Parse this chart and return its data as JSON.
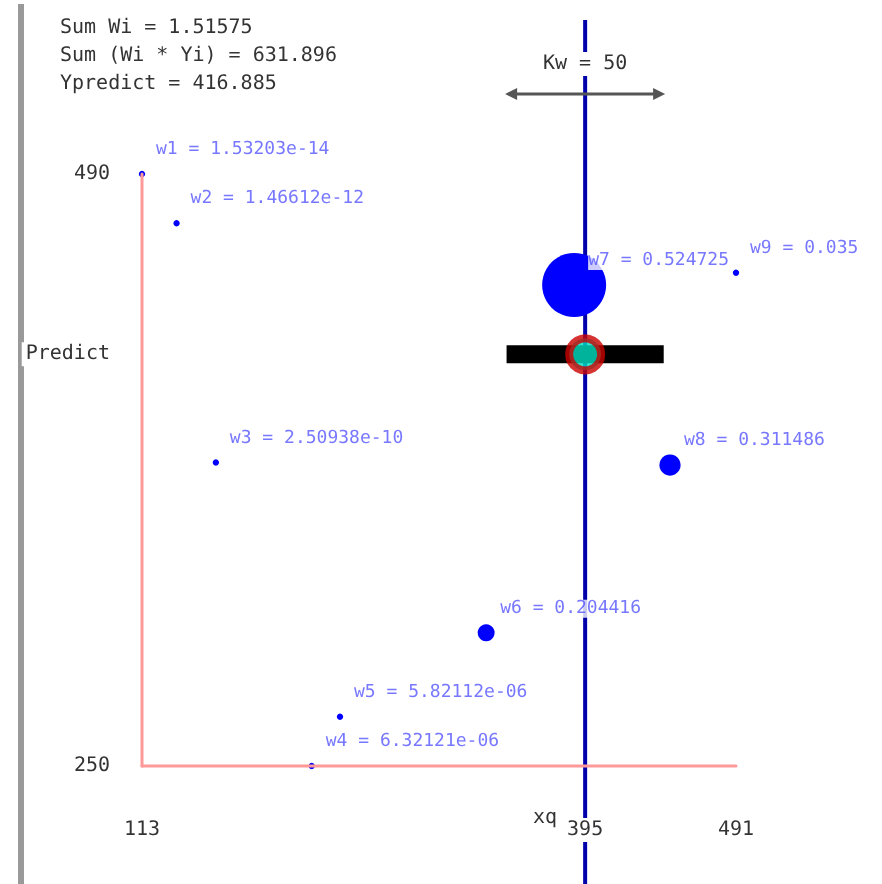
{
  "chart_data": {
    "type": "bubble",
    "xlim": [
      113,
      491
    ],
    "ylim": [
      250,
      490
    ],
    "xticks": [
      113,
      395,
      491
    ],
    "yticks": [
      250,
      {
        "value": 416.885,
        "label": "Predict"
      },
      490
    ],
    "grid": false,
    "series": [
      {
        "color": "#0000ff",
        "x": [
          113,
          135,
          160,
          221,
          239,
          332,
          388,
          449,
          491
        ],
        "values": [
          490,
          470,
          373,
          250,
          270,
          304,
          445,
          372,
          450
        ],
        "sizes": [
          0.01,
          0.01,
          0.01,
          0.01,
          0.01,
          0.07,
          1,
          0.11,
          0.01
        ]
      },
      {
        "type": "scatter",
        "color": "#00e0c0",
        "x": [
          395
        ],
        "values": [
          416.885
        ],
        "xerrors": [
          50
        ]
      }
    ],
    "ref_lines": [
      {
        "axis": "x",
        "value": 395,
        "label": "xq",
        "color": "#0000aa"
      }
    ],
    "annotations": [
      "Sum Wi = 1.51575",
      "Sum (Wi * Yi) = 631.896",
      "Ypredict = 416.885",
      "Kw = 50",
      {
        "text": "w1 = 1.53203e-14",
        "x": 113,
        "y": 490
      },
      {
        "text": "w2 = 1.46612e-12",
        "x": 135,
        "y": 470
      },
      {
        "text": "w3 = 2.50938e-10",
        "x": 160,
        "y": 373
      },
      {
        "text": "w4 = 6.32121e-06",
        "x": 221,
        "y": 250
      },
      {
        "text": "w5 = 5.82112e-06",
        "x": 239,
        "y": 270
      },
      {
        "text": "w6 = 0.204416",
        "x": 332,
        "y": 304
      },
      {
        "text": "w7 = 0.524725",
        "x": 388,
        "y": 445
      },
      {
        "text": "w8 = 0.311486",
        "x": 449,
        "y": 372
      },
      {
        "text": "w9 = 0.035",
        "x": 491,
        "y": 450
      }
    ]
  }
}
